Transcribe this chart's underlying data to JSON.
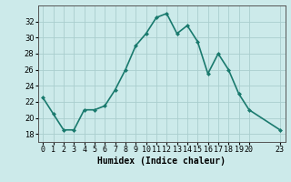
{
  "x": [
    0,
    1,
    2,
    3,
    4,
    5,
    6,
    7,
    8,
    9,
    10,
    11,
    12,
    13,
    14,
    15,
    16,
    17,
    18,
    19,
    20,
    23
  ],
  "y": [
    22.5,
    20.5,
    18.5,
    18.5,
    21.0,
    21.0,
    21.5,
    23.5,
    26.0,
    29.0,
    30.5,
    32.5,
    33.0,
    30.5,
    31.5,
    29.5,
    25.5,
    28.0,
    26.0,
    23.0,
    21.0,
    18.5
  ],
  "line_color": "#1a7a6e",
  "marker": "D",
  "marker_size": 2.0,
  "bg_color": "#cceaea",
  "grid_color": "#aacece",
  "xlabel": "Humidex (Indice chaleur)",
  "xlim": [
    -0.5,
    23.5
  ],
  "ylim": [
    17.0,
    34.0
  ],
  "yticks": [
    18,
    20,
    22,
    24,
    26,
    28,
    30,
    32
  ],
  "xticks": [
    0,
    1,
    2,
    3,
    4,
    5,
    6,
    7,
    8,
    9,
    10,
    11,
    12,
    13,
    14,
    15,
    16,
    17,
    18,
    19,
    20,
    23
  ],
  "xlabel_fontsize": 7,
  "tick_fontsize": 6,
  "linewidth": 1.2,
  "spine_color": "#555555"
}
